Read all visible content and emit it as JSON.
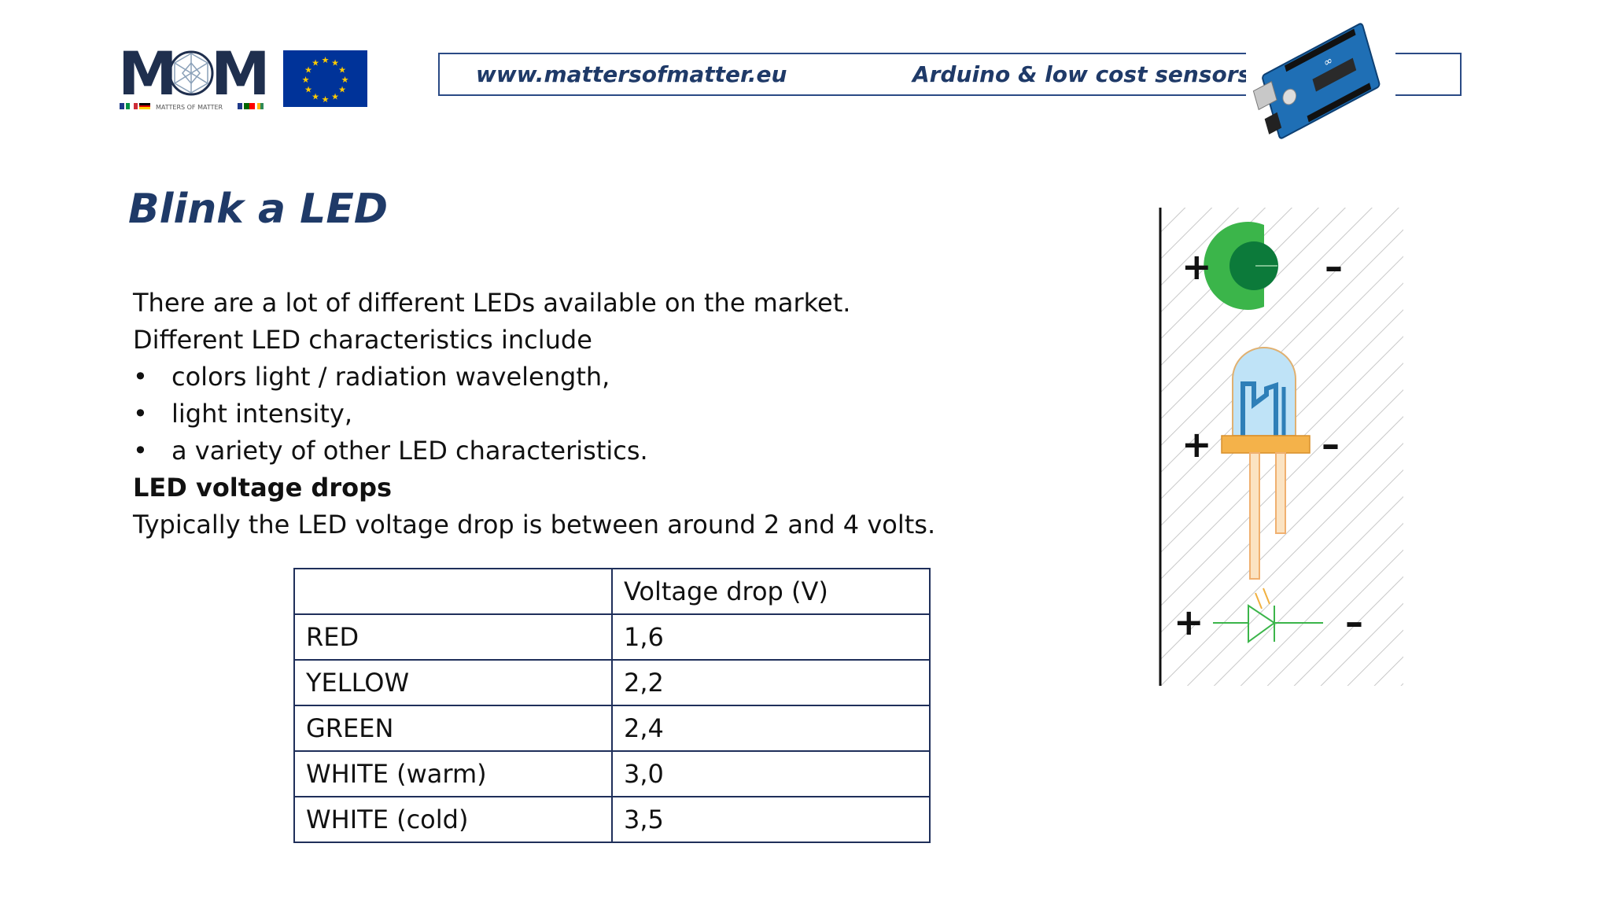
{
  "header": {
    "logo_text": "MOM",
    "logo_subtitle": "MATTERS OF MATTER",
    "site_url": "www.mattersofmatter.eu",
    "course_title": "Arduino & low cost sensors"
  },
  "slide": {
    "title": "Blink a LED",
    "intro_line_1": "There are a lot of different LEDs available on the market.",
    "intro_line_2": "Different LED characteristics include",
    "bullets": [
      "colors light / radiation wavelength,",
      "light intensity,",
      "a variety of other LED characteristics."
    ],
    "bullet_symbol": "•",
    "subheading": "LED voltage drops",
    "voltage_line": "Typically the LED voltage drop is between around 2 and 4 volts."
  },
  "table": {
    "header": [
      "",
      "Voltage drop (V)"
    ],
    "rows": [
      [
        "RED",
        "1,6"
      ],
      [
        "YELLOW",
        "2,2"
      ],
      [
        "GREEN",
        "2,4"
      ],
      [
        "WHITE (warm)",
        "3,0"
      ],
      [
        "WHITE (cold)",
        "3,5"
      ]
    ]
  },
  "illustration": {
    "plus": "+",
    "minus": "–"
  },
  "colors": {
    "title": "#1f3a68",
    "header_border": "#2a4a85",
    "table_border": "#1f2f5a",
    "led_green": "#3bb54a",
    "led_leg": "#f3a64a",
    "eu_blue": "#003399",
    "eu_star": "#ffcc00"
  }
}
